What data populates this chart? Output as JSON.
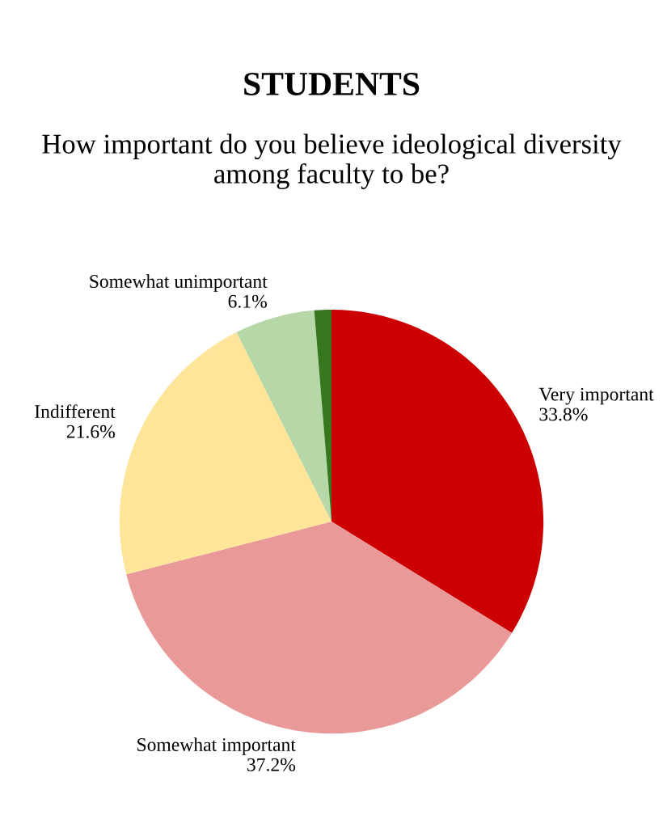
{
  "chart_data": {
    "type": "pie",
    "title": "STUDENTS",
    "subtitle": "How important do you believe ideological diversity among faculty to be?",
    "categories": [
      "Very important",
      "Somewhat important",
      "Indifferent",
      "Somewhat unimportant",
      null
    ],
    "values": [
      33.8,
      37.2,
      21.6,
      6.1,
      1.3
    ],
    "value_labels": [
      "33.8%",
      "37.2%",
      "21.6%",
      "6.1%",
      null
    ],
    "colors": [
      "#cc0000",
      "#ea9999",
      "#ffe599",
      "#b6d7a8",
      "#38761d"
    ],
    "legend": false
  }
}
